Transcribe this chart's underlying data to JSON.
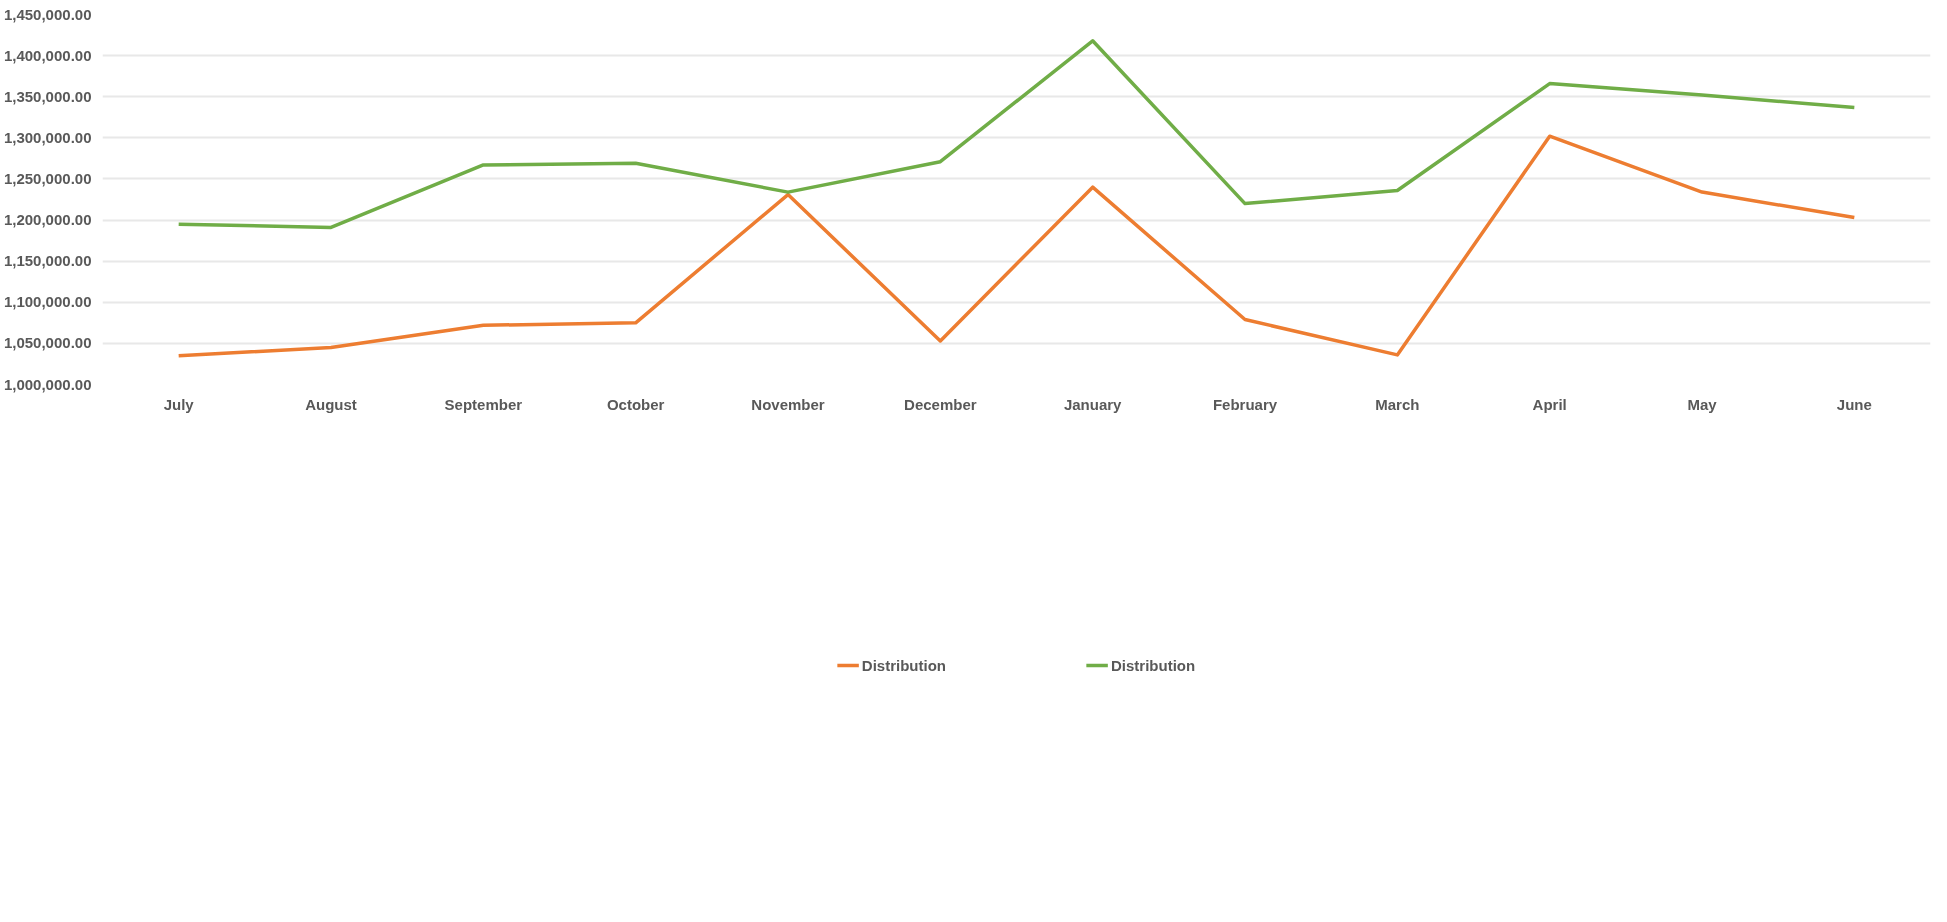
{
  "chart_data": {
    "type": "line",
    "categories": [
      "July",
      "August",
      "September",
      "October",
      "November",
      "December",
      "January",
      "February",
      "March",
      "April",
      "May",
      "June"
    ],
    "series": [
      {
        "name": "Distribution",
        "color": "#ed7d31",
        "values": [
          1035000,
          1045000,
          1072000,
          1075000,
          1231000,
          1053000,
          1240000,
          1079000,
          1036000,
          1302000,
          1234000,
          1203000
        ]
      },
      {
        "name": "Distribution",
        "color": "#70ad47",
        "values": [
          1195000,
          1191000,
          1267000,
          1269000,
          1234000,
          1271000,
          1418000,
          1220000,
          1236000,
          1366000,
          1352000,
          1337000
        ]
      }
    ],
    "ylim": [
      1000000,
      1450000
    ],
    "yticks": [
      {
        "value": 1000000,
        "label": "1,000,000.00"
      },
      {
        "value": 1050000,
        "label": "1,050,000.00"
      },
      {
        "value": 1100000,
        "label": "1,100,000.00"
      },
      {
        "value": 1150000,
        "label": "1,150,000.00"
      },
      {
        "value": 1200000,
        "label": "1,200,000.00"
      },
      {
        "value": 1250000,
        "label": "1,250,000.00"
      },
      {
        "value": 1300000,
        "label": "1,300,000.00"
      },
      {
        "value": 1350000,
        "label": "1,350,000.00"
      },
      {
        "value": 1400000,
        "label": "1,400,000.00"
      },
      {
        "value": 1450000,
        "label": "1,450,000.00"
      }
    ],
    "grid": "y",
    "legend": "bottom",
    "marker": "none",
    "line_style": "solid"
  }
}
